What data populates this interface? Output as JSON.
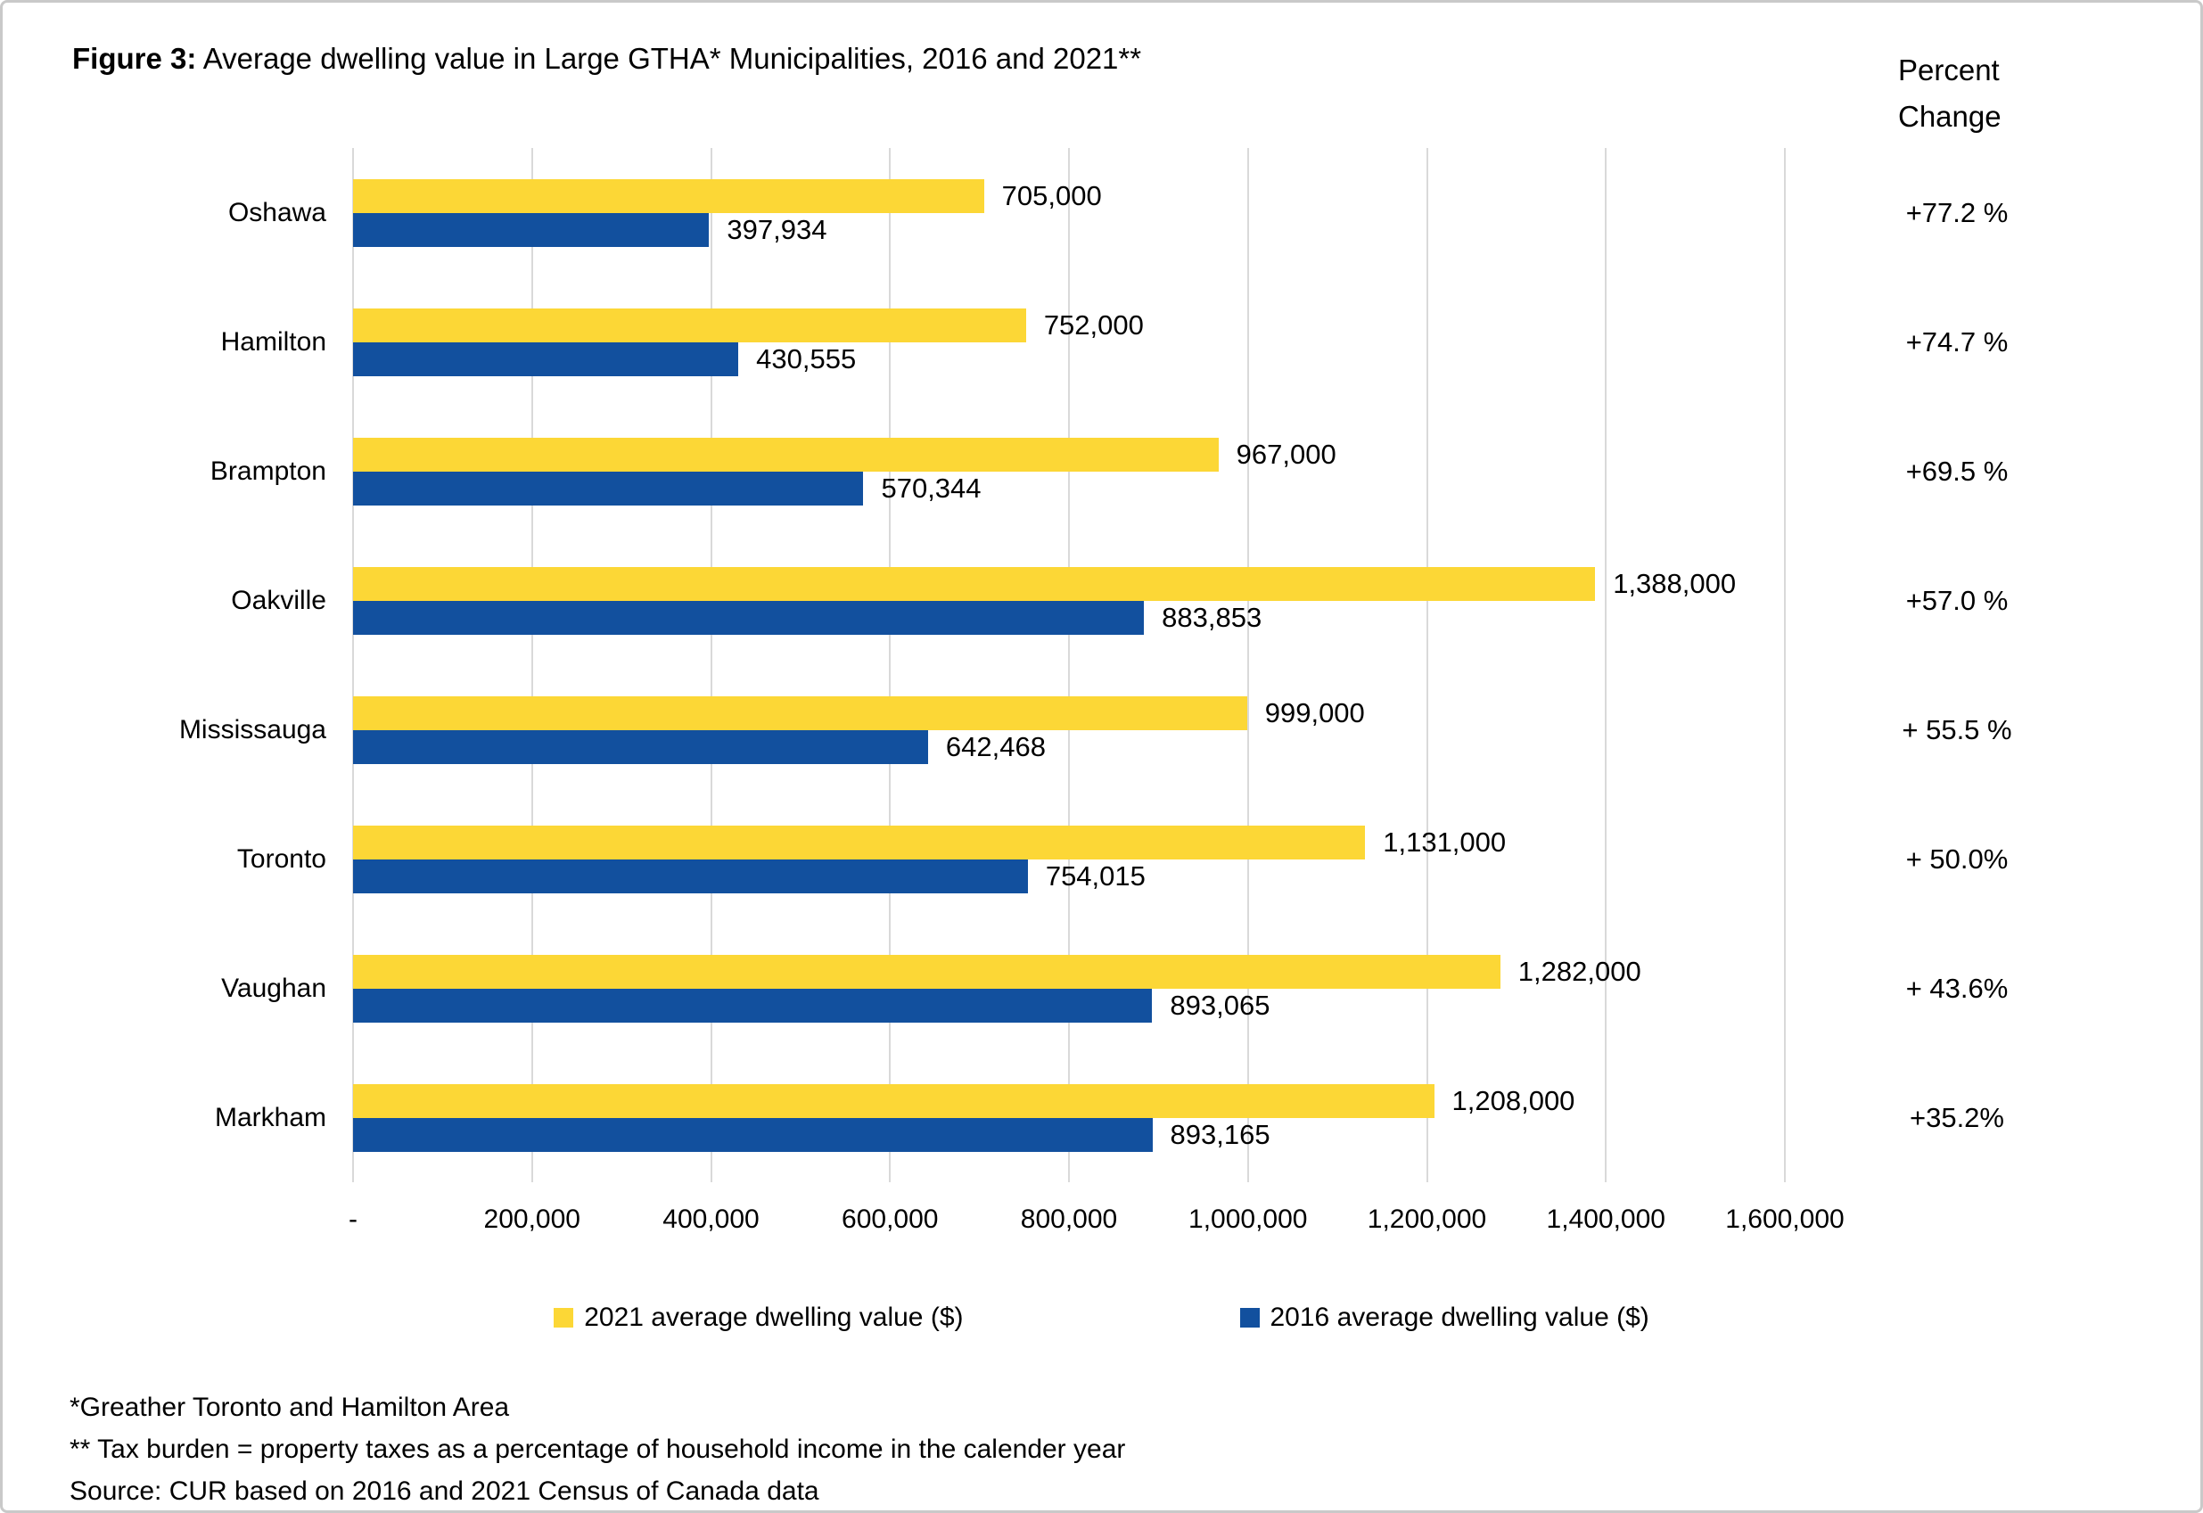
{
  "title": {
    "prefix": "Figure 3:",
    "rest": " Average dwelling value in Large GTHA* Municipalities, 2016 and 2021**"
  },
  "percent_header": {
    "line1": "Percent",
    "line2": "Change"
  },
  "chart_data": {
    "type": "bar",
    "orientation": "horizontal",
    "title": "Figure 3: Average dwelling value in Large GTHA* Municipalities, 2016 and 2021**",
    "categories": [
      "Oshawa",
      "Hamilton",
      "Brampton",
      "Oakville",
      "Mississauga",
      "Toronto",
      "Vaughan",
      "Markham"
    ],
    "series": [
      {
        "name": "2021 average dwelling value ($)",
        "color": "#FCD736",
        "values": [
          705000,
          752000,
          967000,
          1388000,
          999000,
          1131000,
          1282000,
          1208000
        ],
        "labels": [
          "705,000",
          "752,000",
          "967,000",
          "1,388,000",
          "999,000",
          "1,131,000",
          "1,282,000",
          "1,208,000"
        ]
      },
      {
        "name": "2016 average dwelling value ($)",
        "color": "#12509E",
        "values": [
          397934,
          430555,
          570344,
          883853,
          642468,
          754015,
          893065,
          893165
        ],
        "labels": [
          "397,934",
          "430,555",
          "570,344",
          "883,853",
          "642,468",
          "754,015",
          "893,065",
          "893,165"
        ]
      }
    ],
    "percent_change": [
      "+77.2 %",
      "+74.7 %",
      "+69.5 %",
      "+57.0 %",
      "+ 55.5 %",
      "+ 50.0%",
      "+ 43.6%",
      "+35.2%"
    ],
    "xlim": [
      0,
      1600000
    ],
    "x_ticks": [
      "-",
      "200,000",
      "400,000",
      "600,000",
      "800,000",
      "1,000,000",
      "1,200,000",
      "1,400,000",
      "1,600,000"
    ],
    "grid": true,
    "legend_position": "bottom"
  },
  "legend": [
    {
      "label": "2021 average dwelling value ($)",
      "color": "#FCD736"
    },
    {
      "label": "2016 average dwelling value ($)",
      "color": "#12509E"
    }
  ],
  "footnotes": [
    "*Greather Toronto and Hamilton Area",
    "** Tax burden = property taxes as a percentage of household income in the calender year",
    "Source: CUR based on 2016 and 2021 Census of Canada data"
  ],
  "colors": {
    "bar_2021": "#FCD736",
    "bar_2016": "#12509E",
    "gridline": "#D9D9D9",
    "border": "#C9C9C9",
    "text": "#000000"
  }
}
